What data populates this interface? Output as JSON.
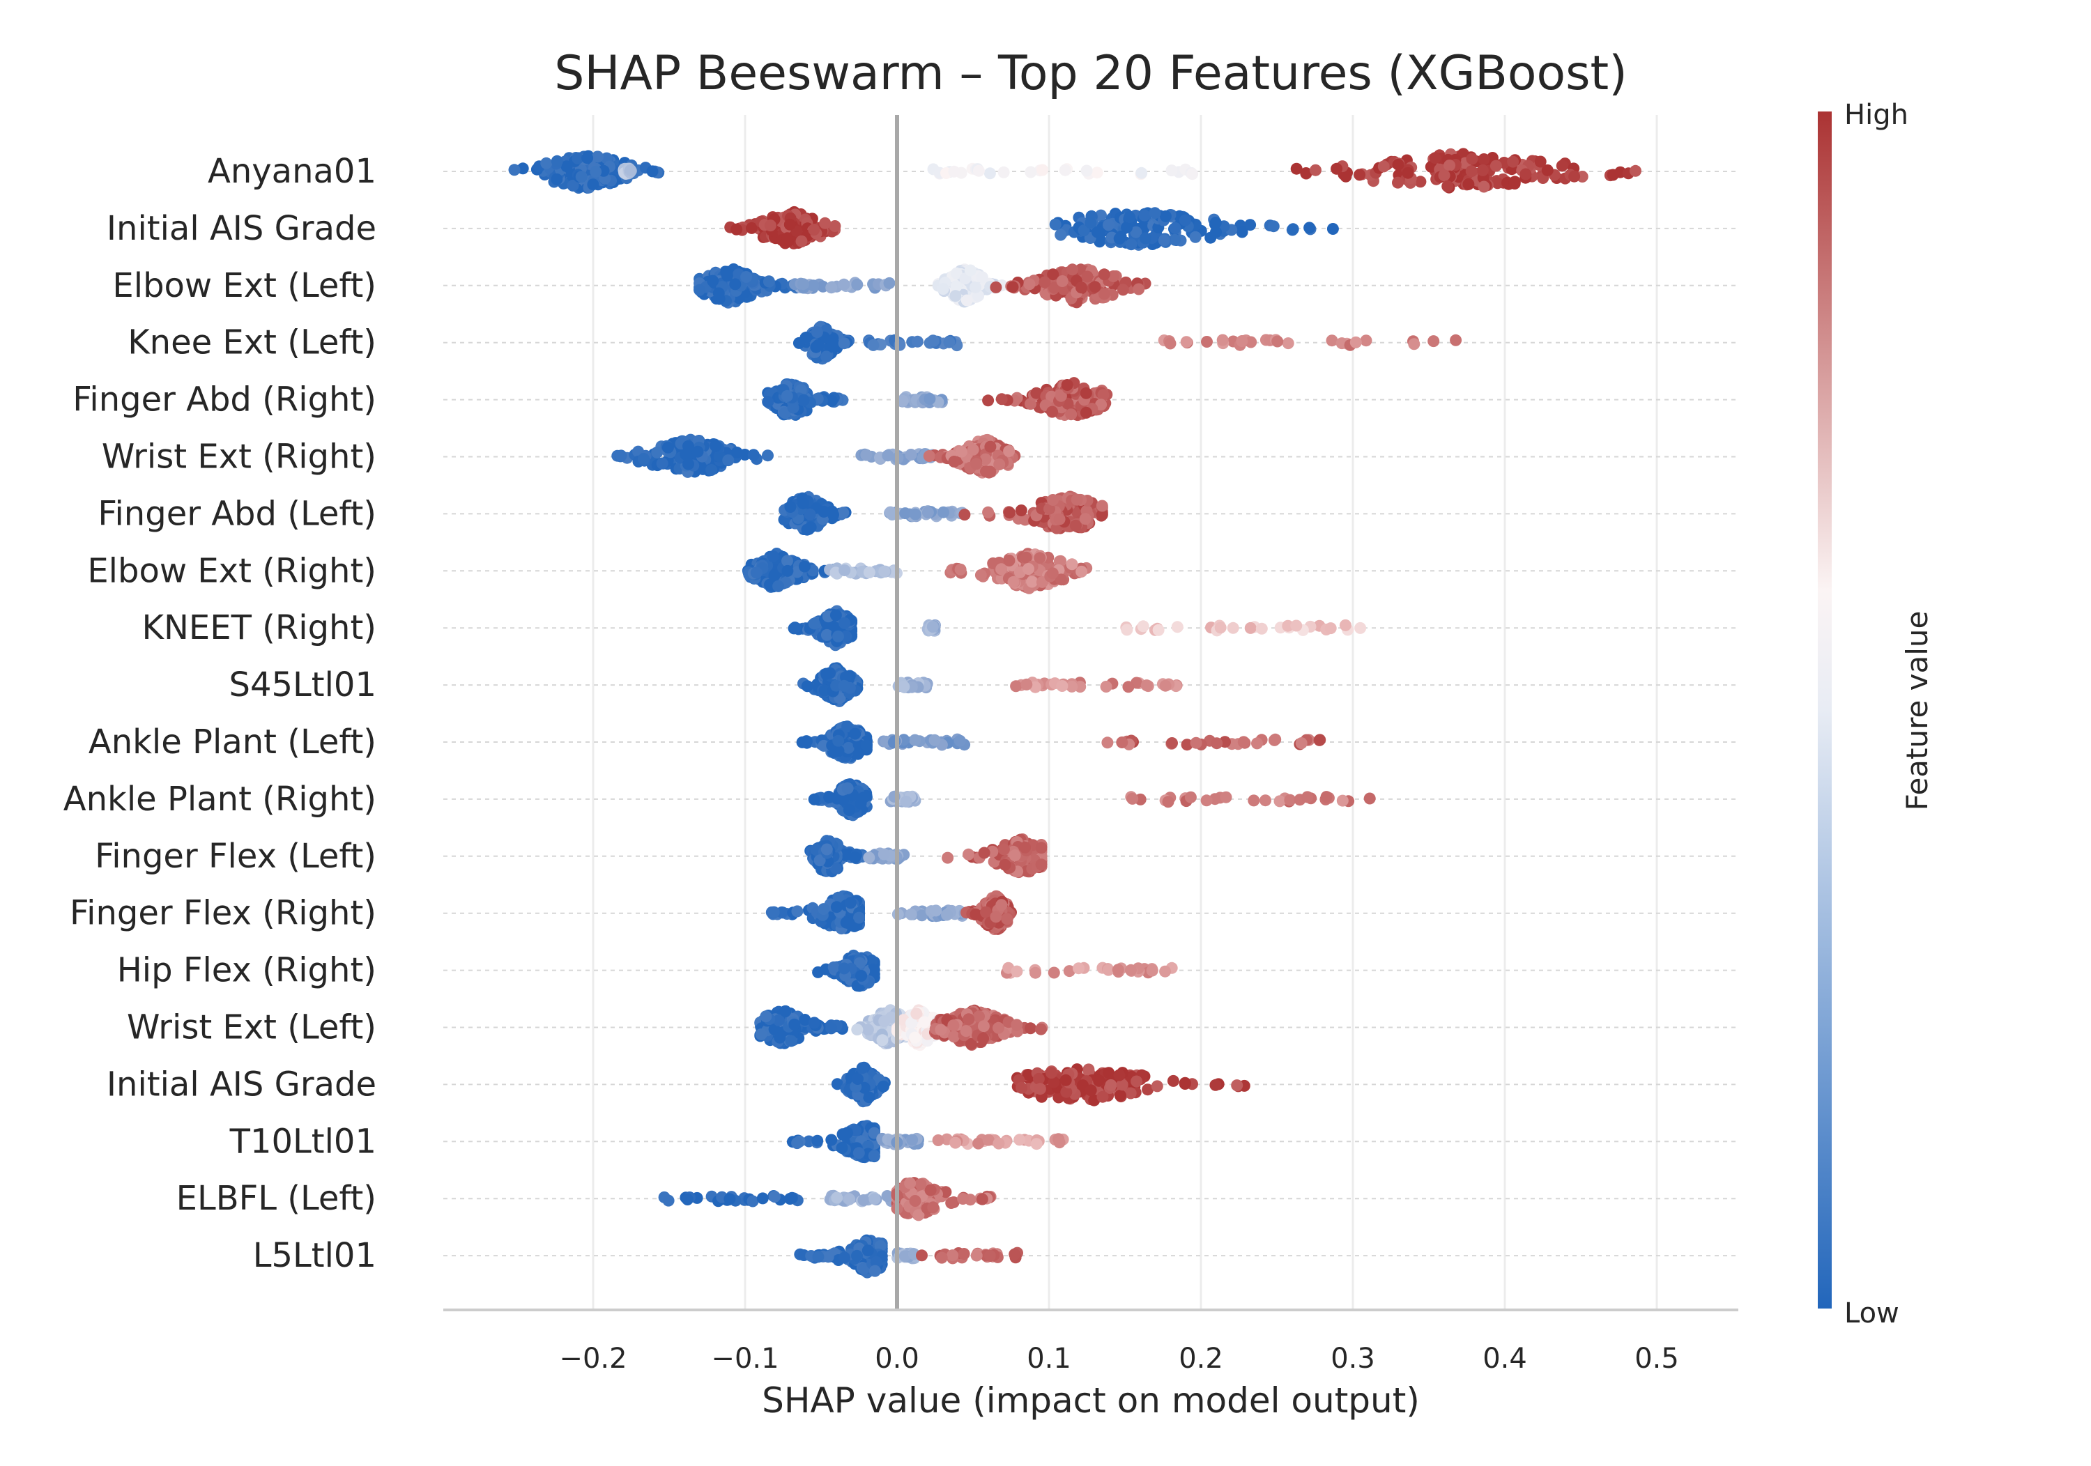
{
  "chart_data": {
    "type": "scatter",
    "subtype": "beeswarm",
    "title": "SHAP Beeswarm – Top 20 Features (XGBoost)",
    "xlabel": "SHAP value (impact on model output)",
    "ylabel": "",
    "xlim": [
      -0.3,
      0.55
    ],
    "x_ticks": [
      -0.2,
      -0.1,
      0.0,
      0.1,
      0.2,
      0.3,
      0.4,
      0.5
    ],
    "x_tick_labels": [
      "−0.2",
      "−0.1",
      "0.0",
      "0.1",
      "0.2",
      "0.3",
      "0.4",
      "0.5"
    ],
    "grid": "vertical",
    "zero_line": true,
    "colorbar": {
      "label": "Feature value",
      "high_label": "High",
      "low_label": "Low",
      "colormap": [
        "#2266bb",
        "#e8ecf4",
        "#fbf4f4",
        "#ab3333"
      ],
      "placement": "right"
    },
    "colors": {
      "low": "#2266bb",
      "high": "#ab3333",
      "mid_low": "#8ea6cf",
      "mid_high": "#e7b1b1"
    },
    "features": [
      {
        "name": "Anyana01",
        "clusters": [
          {
            "x_min": -0.26,
            "x_max": -0.155,
            "center": -0.205,
            "color": 0.02,
            "dense": true
          },
          {
            "x_min": -0.18,
            "x_max": -0.175,
            "center": -0.18,
            "color": 0.35,
            "dense": false
          },
          {
            "x_min": 0.02,
            "x_max": 0.2,
            "center": 0.08,
            "color": 0.55,
            "dense": false
          },
          {
            "x_min": 0.26,
            "x_max": 0.515,
            "center": 0.37,
            "color": 0.97,
            "dense": true
          }
        ]
      },
      {
        "name": "Initial AIS Grade",
        "clusters": [
          {
            "x_min": -0.11,
            "x_max": -0.04,
            "center": -0.07,
            "color": 0.97,
            "dense": true
          },
          {
            "x_min": 0.095,
            "x_max": 0.3,
            "center": 0.16,
            "color": 0.02,
            "dense": true
          }
        ]
      },
      {
        "name": "Elbow Ext (Left)",
        "clusters": [
          {
            "x_min": -0.13,
            "x_max": -0.06,
            "center": -0.11,
            "color": 0.02,
            "dense": true
          },
          {
            "x_min": -0.07,
            "x_max": -0.005,
            "center": -0.04,
            "color": 0.25,
            "dense": false
          },
          {
            "x_min": 0.025,
            "x_max": 0.07,
            "center": 0.045,
            "color": 0.48,
            "dense": true
          },
          {
            "x_min": 0.065,
            "x_max": 0.165,
            "center": 0.12,
            "color": 0.92,
            "dense": true
          }
        ]
      },
      {
        "name": "Knee Ext (Left)",
        "clusters": [
          {
            "x_min": -0.065,
            "x_max": -0.03,
            "center": -0.05,
            "color": 0.02,
            "dense": true
          },
          {
            "x_min": -0.02,
            "x_max": 0.04,
            "center": 0.01,
            "color": 0.1,
            "dense": false
          },
          {
            "x_min": 0.16,
            "x_max": 0.37,
            "center": 0.24,
            "color": 0.85,
            "dense": false
          }
        ]
      },
      {
        "name": "Finger Abd (Right)",
        "clusters": [
          {
            "x_min": -0.085,
            "x_max": -0.032,
            "center": -0.07,
            "color": 0.02,
            "dense": true
          },
          {
            "x_min": 0.0,
            "x_max": 0.03,
            "center": 0.015,
            "color": 0.25,
            "dense": false
          },
          {
            "x_min": 0.058,
            "x_max": 0.138,
            "center": 0.115,
            "color": 0.92,
            "dense": true
          }
        ]
      },
      {
        "name": "Wrist Ext (Right)",
        "clusters": [
          {
            "x_min": -0.185,
            "x_max": -0.085,
            "center": -0.135,
            "color": 0.02,
            "dense": true
          },
          {
            "x_min": -0.025,
            "x_max": 0.025,
            "center": 0.005,
            "color": 0.25,
            "dense": false
          },
          {
            "x_min": 0.02,
            "x_max": 0.078,
            "center": 0.058,
            "color": 0.88,
            "dense": true
          }
        ]
      },
      {
        "name": "Finger Abd (Left)",
        "clusters": [
          {
            "x_min": -0.075,
            "x_max": -0.025,
            "center": -0.06,
            "color": 0.02,
            "dense": true
          },
          {
            "x_min": -0.005,
            "x_max": 0.045,
            "center": 0.02,
            "color": 0.25,
            "dense": false
          },
          {
            "x_min": 0.04,
            "x_max": 0.135,
            "center": 0.113,
            "color": 0.92,
            "dense": true
          }
        ]
      },
      {
        "name": "Elbow Ext (Right)",
        "clusters": [
          {
            "x_min": -0.098,
            "x_max": -0.04,
            "center": -0.08,
            "color": 0.02,
            "dense": true
          },
          {
            "x_min": -0.045,
            "x_max": 0.0,
            "center": -0.02,
            "color": 0.35,
            "dense": false
          },
          {
            "x_min": 0.035,
            "x_max": 0.127,
            "center": 0.088,
            "color": 0.85,
            "dense": true
          }
        ]
      },
      {
        "name": "KNEET (Right)",
        "clusters": [
          {
            "x_min": -0.068,
            "x_max": -0.03,
            "center": -0.04,
            "color": 0.02,
            "dense": true
          },
          {
            "x_min": 0.02,
            "x_max": 0.025,
            "center": 0.022,
            "color": 0.3,
            "dense": false
          },
          {
            "x_min": 0.135,
            "x_max": 0.305,
            "center": 0.19,
            "color": 0.7,
            "dense": false
          }
        ]
      },
      {
        "name": "S45Ltl01",
        "clusters": [
          {
            "x_min": -0.065,
            "x_max": -0.025,
            "center": -0.04,
            "color": 0.02,
            "dense": true
          },
          {
            "x_min": 0.0,
            "x_max": 0.02,
            "center": 0.01,
            "color": 0.3,
            "dense": false
          },
          {
            "x_min": 0.07,
            "x_max": 0.185,
            "center": 0.11,
            "color": 0.82,
            "dense": false
          }
        ]
      },
      {
        "name": "Ankle Plant (Left)",
        "clusters": [
          {
            "x_min": -0.065,
            "x_max": -0.02,
            "center": -0.033,
            "color": 0.02,
            "dense": true
          },
          {
            "x_min": -0.01,
            "x_max": 0.045,
            "center": 0.02,
            "color": 0.2,
            "dense": false
          },
          {
            "x_min": 0.135,
            "x_max": 0.283,
            "center": 0.215,
            "color": 0.9,
            "dense": false
          }
        ]
      },
      {
        "name": "Ankle Plant (Right)",
        "clusters": [
          {
            "x_min": -0.055,
            "x_max": -0.02,
            "center": -0.03,
            "color": 0.02,
            "dense": true
          },
          {
            "x_min": -0.005,
            "x_max": 0.012,
            "center": 0.005,
            "color": 0.3,
            "dense": false
          },
          {
            "x_min": 0.15,
            "x_max": 0.315,
            "center": 0.21,
            "color": 0.85,
            "dense": false
          }
        ]
      },
      {
        "name": "Finger Flex (Left)",
        "clusters": [
          {
            "x_min": -0.057,
            "x_max": -0.02,
            "center": -0.045,
            "color": 0.02,
            "dense": true
          },
          {
            "x_min": -0.02,
            "x_max": 0.005,
            "center": -0.01,
            "color": 0.25,
            "dense": false
          },
          {
            "x_min": 0.03,
            "x_max": 0.095,
            "center": 0.083,
            "color": 0.9,
            "dense": true
          }
        ]
      },
      {
        "name": "Finger Flex (Right)",
        "clusters": [
          {
            "x_min": -0.083,
            "x_max": -0.025,
            "center": -0.035,
            "color": 0.02,
            "dense": true
          },
          {
            "x_min": 0.0,
            "x_max": 0.045,
            "center": 0.02,
            "color": 0.25,
            "dense": false
          },
          {
            "x_min": 0.045,
            "x_max": 0.075,
            "center": 0.065,
            "color": 0.92,
            "dense": true
          }
        ]
      },
      {
        "name": "Hip Flex (Right)",
        "clusters": [
          {
            "x_min": -0.055,
            "x_max": -0.015,
            "center": -0.025,
            "color": 0.02,
            "dense": true
          },
          {
            "x_min": 0.07,
            "x_max": 0.185,
            "center": 0.11,
            "color": 0.8,
            "dense": false
          }
        ]
      },
      {
        "name": "Wrist Ext (Left)",
        "clusters": [
          {
            "x_min": -0.09,
            "x_max": -0.03,
            "center": -0.075,
            "color": 0.02,
            "dense": true
          },
          {
            "x_min": -0.03,
            "x_max": 0.02,
            "center": -0.005,
            "color": 0.38,
            "dense": true
          },
          {
            "x_min": 0.0,
            "x_max": 0.04,
            "center": 0.015,
            "color": 0.6,
            "dense": true
          },
          {
            "x_min": 0.025,
            "x_max": 0.1,
            "center": 0.05,
            "color": 0.9,
            "dense": true
          }
        ]
      },
      {
        "name": "Initial AIS Grade",
        "clusters": [
          {
            "x_min": -0.04,
            "x_max": -0.008,
            "center": -0.022,
            "color": 0.02,
            "dense": true
          },
          {
            "x_min": 0.065,
            "x_max": 0.235,
            "center": 0.12,
            "color": 0.97,
            "dense": true
          }
        ]
      },
      {
        "name": "T10Ltl01",
        "clusters": [
          {
            "x_min": -0.072,
            "x_max": -0.015,
            "center": -0.02,
            "color": 0.02,
            "dense": true
          },
          {
            "x_min": -0.01,
            "x_max": 0.015,
            "center": 0.005,
            "color": 0.25,
            "dense": false
          },
          {
            "x_min": 0.025,
            "x_max": 0.11,
            "center": 0.06,
            "color": 0.78,
            "dense": false
          }
        ]
      },
      {
        "name": "ELBFL (Left)",
        "clusters": [
          {
            "x_min": -0.155,
            "x_max": -0.06,
            "center": -0.12,
            "color": 0.02,
            "dense": false
          },
          {
            "x_min": -0.045,
            "x_max": 0.0,
            "center": -0.02,
            "color": 0.3,
            "dense": false
          },
          {
            "x_min": 0.0,
            "x_max": 0.065,
            "center": 0.012,
            "color": 0.88,
            "dense": true
          }
        ]
      },
      {
        "name": "L5Ltl01",
        "clusters": [
          {
            "x_min": -0.065,
            "x_max": -0.01,
            "center": -0.018,
            "color": 0.02,
            "dense": true
          },
          {
            "x_min": 0.0,
            "x_max": 0.012,
            "center": 0.005,
            "color": 0.3,
            "dense": false
          },
          {
            "x_min": 0.015,
            "x_max": 0.08,
            "center": 0.04,
            "color": 0.88,
            "dense": false
          }
        ]
      }
    ]
  }
}
